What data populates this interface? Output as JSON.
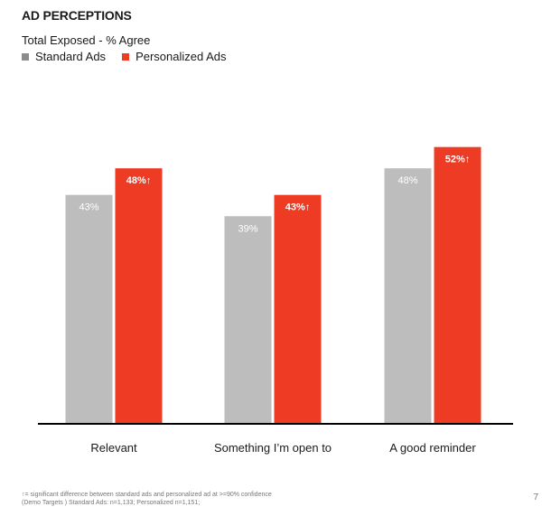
{
  "title": "AD PERCEPTIONS",
  "subtitle": "Total Exposed - % Agree",
  "colors": {
    "standard": "#bdbdbd",
    "personalized": "#ee3b24",
    "axis": "#000000",
    "label_text": "#ffffff"
  },
  "legend": [
    {
      "name": "Standard Ads",
      "color": "#8c8c8c"
    },
    {
      "name": "Personalized Ads",
      "color": "#ee3b24"
    }
  ],
  "chart_data": {
    "type": "bar",
    "categories": [
      "Relevant",
      "Something I’m open to",
      "A good reminder"
    ],
    "series": [
      {
        "name": "Standard Ads",
        "values": [
          43,
          39,
          48
        ],
        "labels": [
          "43%",
          "39%",
          "48%"
        ]
      },
      {
        "name": "Personalized Ads",
        "values": [
          48,
          43,
          52
        ],
        "labels": [
          "48%↑",
          "43%↑",
          "52%↑"
        ]
      }
    ],
    "ylim": [
      0,
      55
    ],
    "grid": false,
    "legend_position": "top-left"
  },
  "footnote": {
    "line1": "↑= significant difference between standard ads and personalized ad at >=90% confidence",
    "line2": "(Demo Targets ) Standard Ads:  n=1,133; Personalized n=1,151;"
  },
  "page_number": "7"
}
